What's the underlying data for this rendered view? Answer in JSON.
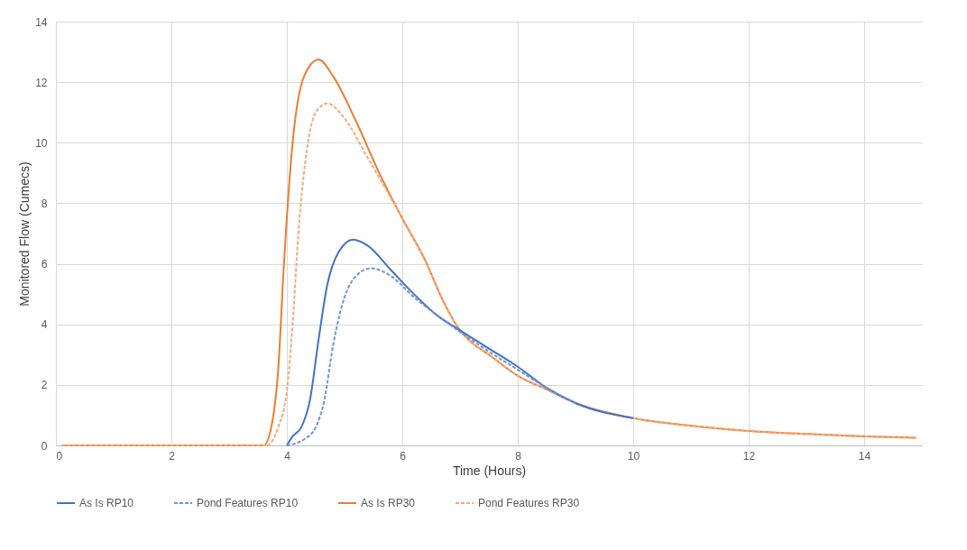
{
  "chart_data": {
    "type": "line",
    "xlabel": "Time (Hours)",
    "ylabel": "Monitored Flow (Cumecs)",
    "xlim": [
      0,
      15
    ],
    "xticks": [
      0,
      2,
      4,
      6,
      8,
      10,
      12,
      14
    ],
    "ylim": [
      0,
      14
    ],
    "yticks": [
      0,
      2,
      4,
      6,
      8,
      10,
      12,
      14
    ],
    "grid": true,
    "legend": "bottom",
    "marker": "none",
    "series": [
      {
        "name": "As Is RP10",
        "color": "#4472c4",
        "line_style": "solid",
        "x": [
          4.0,
          4.1,
          4.25,
          4.4,
          4.55,
          4.7,
          4.9,
          5.15,
          5.4,
          5.8,
          6.2,
          6.6,
          7.0,
          7.5,
          8.0,
          8.5,
          9,
          10
        ],
        "values": [
          0,
          0.3,
          0.6,
          1.5,
          3.5,
          5.3,
          6.4,
          6.8,
          6.6,
          5.8,
          5.0,
          4.3,
          3.8,
          3.2,
          2.6,
          1.9,
          1.4,
          0.9
        ]
      },
      {
        "name": "Pond Features RP10",
        "color": "#6f94d8",
        "line_style": "dashed",
        "x": [
          4.0,
          4.3,
          4.5,
          4.65,
          4.8,
          5.0,
          5.2,
          5.45,
          5.8,
          6.2,
          6.6,
          7.0,
          7.5,
          8.0,
          8.5,
          9
        ],
        "values": [
          0,
          0.2,
          0.6,
          1.5,
          3.3,
          4.9,
          5.6,
          5.85,
          5.6,
          4.9,
          4.3,
          3.75,
          3.1,
          2.5,
          1.9,
          1.4
        ]
      },
      {
        "name": "As Is RP30",
        "color": "#ed7d31",
        "line_style": "solid",
        "x": [
          0.1,
          1,
          2,
          3,
          3.6,
          3.75,
          3.85,
          3.95,
          4.1,
          4.3,
          4.55,
          4.8,
          5.2,
          5.6,
          6.0,
          6.4,
          6.7,
          7.0,
          7.2,
          7.5,
          8.0,
          8.5,
          9,
          10,
          11,
          12,
          13,
          14,
          14.9
        ],
        "values": [
          0,
          0,
          0,
          0,
          0,
          0.8,
          2.5,
          6,
          10,
          12.2,
          12.75,
          12.2,
          10.7,
          9.0,
          7.5,
          6.1,
          4.8,
          3.8,
          3.4,
          3.0,
          2.3,
          1.85,
          1.4,
          0.9,
          0.65,
          0.48,
          0.38,
          0.3,
          0.25
        ]
      },
      {
        "name": "Pond Features RP30",
        "color": "#f4a97a",
        "line_style": "dashed",
        "x": [
          0.1,
          1,
          2,
          3,
          3.65,
          3.85,
          4.0,
          4.1,
          4.2,
          4.35,
          4.5,
          4.7,
          5.0,
          5.4,
          6.0,
          6.4,
          6.7,
          7.0,
          7.2,
          7.5,
          8.0,
          8.5,
          9,
          10,
          11,
          12,
          13,
          14,
          14.9
        ],
        "values": [
          0,
          0,
          0,
          0,
          0,
          0.6,
          1.8,
          4,
          7,
          9.8,
          11,
          11.3,
          10.8,
          9.5,
          7.5,
          6.1,
          4.8,
          3.8,
          3.4,
          3.0,
          2.3,
          1.85,
          1.4,
          0.9,
          0.65,
          0.48,
          0.38,
          0.3,
          0.25
        ]
      }
    ]
  }
}
